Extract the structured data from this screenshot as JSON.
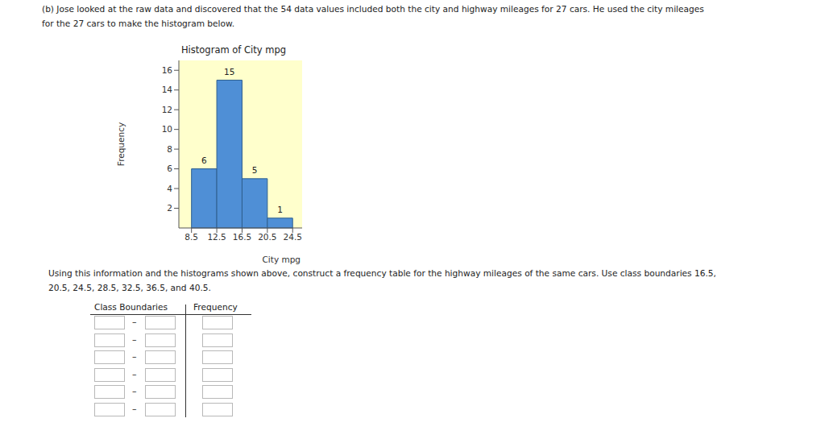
{
  "paragraph_1": [
    "(b) Jose looked at the raw data and discovered that the 54 data values included both the city and highway mileages for 27 cars. He used the city mileages",
    "for the 27 cars to make the histogram below."
  ],
  "chart_data": {
    "type": "histogram",
    "title": "Histogram of City mpg",
    "x_label": "City mpg",
    "y_label": "Frequency",
    "bins": [
      8.5,
      12.5,
      16.5,
      20.5,
      24.5
    ],
    "values": [
      6,
      15,
      5,
      1
    ],
    "color": "#4f8fd6",
    "xlim": [
      6.5,
      26
    ],
    "xticks": [
      8.5,
      12.5,
      16.5,
      20.5,
      24.5
    ],
    "ylim": [
      0,
      17
    ],
    "yticks": [
      2,
      4,
      6,
      8,
      10,
      12,
      14,
      16
    ],
    "data_labels": true,
    "grid": false
  },
  "paragraph_2": [
    "Using this information and the histograms shown above, construct a frequency table for the highway mileages of the same cars. Use class boundaries 16.5,",
    "20.5, 24.5, 28.5, 32.5, 36.5, and 40.5."
  ],
  "table": {
    "header": [
      "Class Boundaries",
      "Frequency"
    ],
    "separator": "–"
  }
}
